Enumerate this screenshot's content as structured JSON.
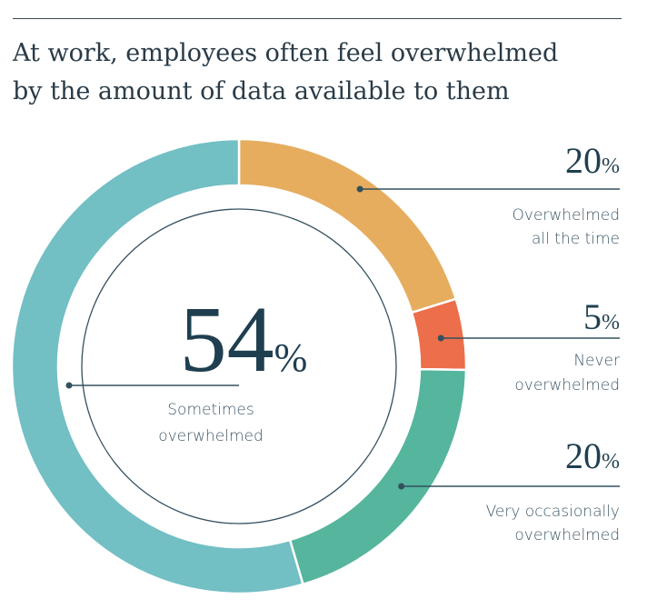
{
  "title_lines": [
    "At work, employees often feel overwhelmed",
    "by the amount of data available to them"
  ],
  "chart_data": {
    "type": "pie",
    "style": "donut",
    "title": "At work, employees often feel overwhelmed by the amount of data available to them",
    "unit": "%",
    "slices": [
      {
        "label": "Overwhelmed all the time",
        "label_lines": [
          "Overwhelmed",
          "all the time"
        ],
        "value": 20,
        "color": "#e6ad5f"
      },
      {
        "label": "Never overwhelmed",
        "label_lines": [
          "Never",
          "overwhelmed"
        ],
        "value": 5,
        "color": "#ec6e4b"
      },
      {
        "label": "Very occasionally overwhelmed",
        "label_lines": [
          "Very occasionally",
          "overwhelmed"
        ],
        "value": 20,
        "color": "#55b59d"
      },
      {
        "label": "Sometimes overwhelmed",
        "label_lines": [
          "Sometimes",
          "overwhelmed"
        ],
        "value": 54,
        "color": "#72bfc4"
      }
    ]
  }
}
